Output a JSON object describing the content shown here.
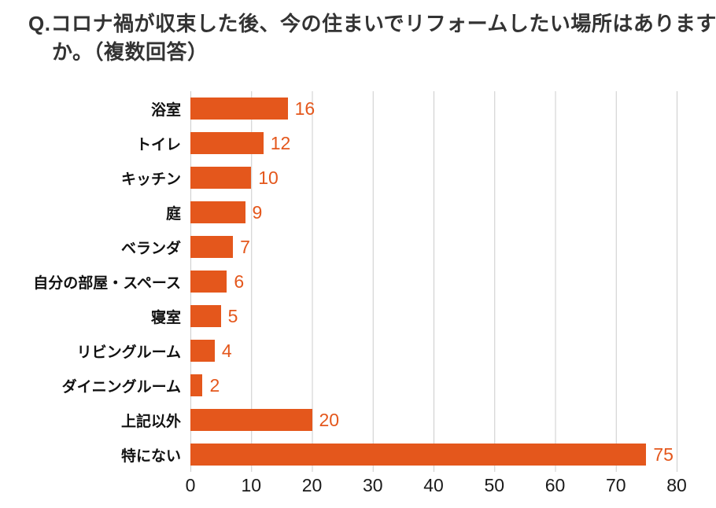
{
  "title": "Q.コロナ禍が収束した後、今の住まいでリフォームしたい場所はありますか。（複数回答）",
  "colors": {
    "bar": "#e4571c",
    "value_label": "#e4571c",
    "grid": "#cccccc",
    "title": "#333333",
    "tick": "#1a1a1a"
  },
  "chart_data": {
    "type": "bar",
    "orientation": "horizontal",
    "title": "Q.コロナ禍が収束した後、今の住まいでリフォームしたい場所はありますか。（複数回答）",
    "categories": [
      "浴室",
      "トイレ",
      "キッチン",
      "庭",
      "ベランダ",
      "自分の部屋・スペース",
      "寝室",
      "リビングルーム",
      "ダイニングルーム",
      "上記以外",
      "特にない"
    ],
    "values": [
      16,
      12,
      10,
      9,
      7,
      6,
      5,
      4,
      2,
      20,
      75
    ],
    "xlabel": "",
    "ylabel": "",
    "xlim": [
      0,
      80
    ],
    "xticks": [
      0,
      10,
      20,
      30,
      40,
      50,
      60,
      70,
      80
    ],
    "grid": true,
    "legend": false,
    "value_labels": true
  }
}
